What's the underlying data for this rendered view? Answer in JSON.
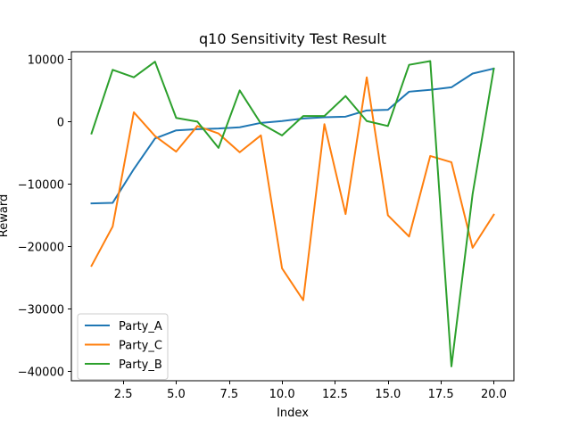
{
  "chart_data": {
    "type": "line",
    "title": "q10 Sensitivity Test Result",
    "xlabel": "Index",
    "ylabel": "Reward",
    "xlim": [
      0.05,
      20.95
    ],
    "ylim": [
      -41500,
      11200
    ],
    "xticks": [
      2.5,
      5.0,
      7.5,
      10.0,
      12.5,
      15.0,
      17.5,
      20.0
    ],
    "xtick_labels": [
      "2.5",
      "5.0",
      "7.5",
      "10.0",
      "12.5",
      "15.0",
      "17.5",
      "20.0"
    ],
    "yticks": [
      -40000,
      -30000,
      -20000,
      -10000,
      0,
      10000
    ],
    "ytick_labels": [
      "−40000",
      "−30000",
      "−20000",
      "−10000",
      "0",
      "10000"
    ],
    "grid": false,
    "legend_position": "lower-left",
    "x": [
      1,
      2,
      3,
      4,
      5,
      6,
      7,
      8,
      9,
      10,
      11,
      12,
      13,
      14,
      15,
      16,
      17,
      18,
      19,
      20
    ],
    "series": [
      {
        "name": "Party_A",
        "color": "#1f77b4",
        "values": [
          -13100,
          -13000,
          -7600,
          -2700,
          -1400,
          -1200,
          -1100,
          -900,
          -200,
          100,
          500,
          700,
          800,
          1800,
          1900,
          4800,
          5100,
          5500,
          7700,
          8500
        ]
      },
      {
        "name": "Party_C",
        "color": "#ff7f0e",
        "values": [
          -23100,
          -16800,
          1500,
          -2300,
          -4800,
          -700,
          -1900,
          -4900,
          -2200,
          -23500,
          -28600,
          -400,
          -14800,
          7100,
          -15000,
          -18400,
          -5500,
          -6500,
          -20200,
          -14900
        ]
      },
      {
        "name": "Party_B",
        "color": "#2ca02c",
        "values": [
          -1900,
          8300,
          7100,
          9600,
          600,
          0,
          -4200,
          5000,
          -300,
          -2200,
          900,
          900,
          4100,
          100,
          -700,
          9100,
          9700,
          -39200,
          -11600,
          8500
        ]
      }
    ]
  }
}
